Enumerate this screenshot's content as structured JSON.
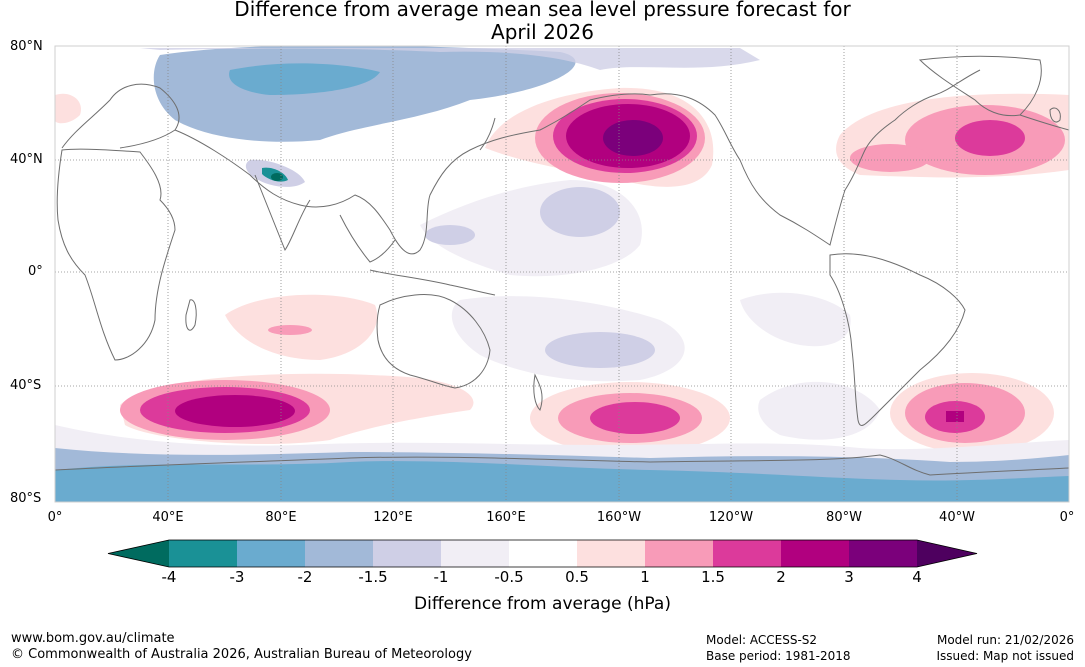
{
  "title_line1": "Difference from average mean sea level pressure forecast for",
  "title_line2": "April 2026",
  "lat_labels": [
    "80°N",
    "40°N",
    "0°",
    "40°S",
    "80°S"
  ],
  "lon_labels": [
    "0°",
    "40°E",
    "80°E",
    "120°E",
    "160°E",
    "160°W",
    "120°W",
    "80°W",
    "40°W",
    "0°"
  ],
  "colorbar": {
    "title": "Difference from average (hPa)",
    "ticks": [
      "-4",
      "-3",
      "-2",
      "-1.5",
      "-1",
      "-0.5",
      "0.5",
      "1",
      "1.5",
      "2",
      "3",
      "4"
    ],
    "colors": [
      "#1a9196",
      "#6aabcf",
      "#a2b9d8",
      "#cfcfe6",
      "#f1eef5",
      "#ffffff",
      "#fde0df",
      "#f89bb8",
      "#dc3a9b",
      "#b1007f",
      "#7b007b"
    ],
    "under_color": "#006b5f",
    "over_color": "#4e005f"
  },
  "footer": {
    "website": "www.bom.gov.au/climate",
    "copyright": "© Commonwealth of Australia 2026, Australian Bureau of Meteorology",
    "model": "Model: ACCESS-S2",
    "base_period": "Base period: 1981-2018",
    "model_run": "Model run: 21/02/2026",
    "issued": "Issued: Map not issued"
  }
}
